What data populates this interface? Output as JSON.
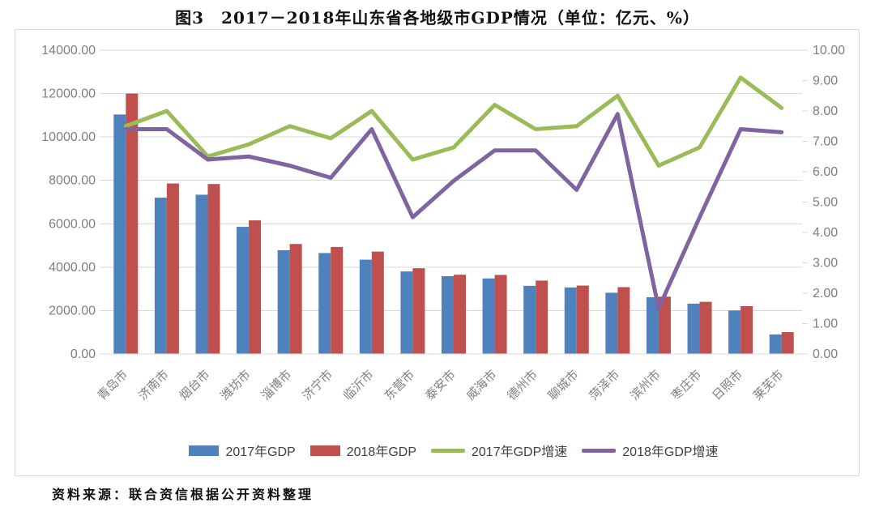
{
  "page": {
    "title": "图3　2017－2018年山东省各地级市GDP情况（单位：亿元、%）",
    "source": "资料来源：联合资信根据公开资料整理"
  },
  "chart_data": {
    "type": "combo_bar_line",
    "title": "图3　2017－2018年山东省各地级市GDP情况（单位：亿元、%）",
    "categories": [
      "青岛市",
      "济南市",
      "烟台市",
      "潍坊市",
      "淄博市",
      "济宁市",
      "临沂市",
      "东营市",
      "泰安市",
      "威海市",
      "德州市",
      "聊城市",
      "菏泽市",
      "滨州市",
      "枣庄市",
      "日照市",
      "莱芜市"
    ],
    "series": [
      {
        "name": "2017年GDP",
        "type": "bar",
        "axis": "left",
        "color": "#4f81bd",
        "values": [
          11037.3,
          7202.0,
          7339.0,
          5858.6,
          4781.3,
          4650.6,
          4345.4,
          3801.8,
          3585.3,
          3480.1,
          3140.2,
          3064.1,
          2820.2,
          2613.1,
          2315.9,
          2002.5,
          896.0
        ]
      },
      {
        "name": "2018年GDP",
        "type": "bar",
        "axis": "left",
        "color": "#c0504d",
        "values": [
          12001.5,
          7856.6,
          7832.6,
          6156.8,
          5068.4,
          4930.6,
          4717.8,
          3950.0,
          3651.5,
          3641.5,
          3380.3,
          3152.2,
          3078.8,
          2640.5,
          2402.4,
          2202.1,
          1005.7
        ]
      },
      {
        "name": "2017年GDP增速",
        "type": "line",
        "axis": "right",
        "color": "#9bbb59",
        "values": [
          7.5,
          8.0,
          6.5,
          6.9,
          7.5,
          7.1,
          8.0,
          6.4,
          6.8,
          8.2,
          7.4,
          7.5,
          8.5,
          6.2,
          6.8,
          9.1,
          8.1
        ]
      },
      {
        "name": "2018年GDP增速",
        "type": "line",
        "axis": "right",
        "color": "#8064a2",
        "values": [
          7.4,
          7.4,
          6.4,
          6.5,
          6.2,
          5.8,
          7.4,
          4.5,
          5.7,
          6.7,
          6.7,
          5.4,
          7.9,
          1.5,
          4.5,
          7.4,
          7.3
        ]
      }
    ],
    "left_axis": {
      "min": 0,
      "max": 14000,
      "step": 2000,
      "tick_labels": [
        "14000.00",
        "12000.00",
        "10000.00",
        "8000.00",
        "6000.00",
        "4000.00",
        "2000.00",
        "0.00"
      ]
    },
    "right_axis": {
      "min": 0,
      "max": 10,
      "step": 1,
      "tick_labels": [
        "10.00",
        "9.00",
        "8.00",
        "7.00",
        "6.00",
        "5.00",
        "4.00",
        "3.00",
        "2.00",
        "1.00",
        "0.00"
      ]
    },
    "grid": true,
    "legend_position": "bottom",
    "source": "资料来源：联合资信根据公开资料整理",
    "colors": {
      "grid": "#d9d9d9",
      "axis_text": "#7f7f7f",
      "legend_text": "#404040",
      "border": "#d9d9d9"
    }
  }
}
